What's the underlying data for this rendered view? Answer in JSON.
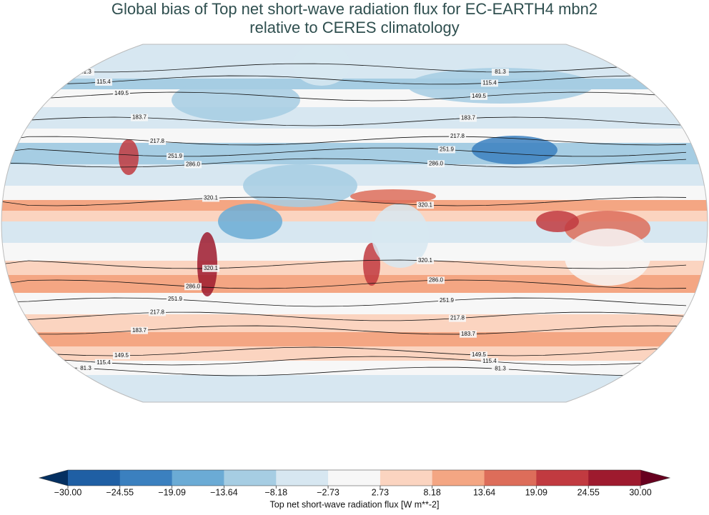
{
  "title": [
    "Global bias of Top net short-wave radiation flux for EC-EARTH4 mbn2",
    "relative to CERES climatology"
  ],
  "contour_levels": [
    81.3,
    115.4,
    149.5,
    183.7,
    217.8,
    251.9,
    {
      "value": 286,
      "label": "286.0"
    },
    320.1
  ],
  "colorbar": {
    "label": "Top net short-wave radiation flux [W m**-2]",
    "ticks": [
      {
        "value": -30,
        "label": "−30.00"
      },
      {
        "value": -24.55,
        "label": "−24.55"
      },
      {
        "value": -19.09,
        "label": "−19.09"
      },
      {
        "value": -13.64,
        "label": "−13.64"
      },
      {
        "value": -8.18,
        "label": "−8.18"
      },
      {
        "value": -2.73,
        "label": "−2.73"
      },
      2.73,
      8.18,
      13.64,
      19.09,
      24.55,
      {
        "value": 30,
        "label": "30.00"
      }
    ],
    "colors": [
      "#1f5fa4",
      "#3b80bf",
      "#6babd5",
      "#a6cde3",
      "#d7e7f1",
      "#f7f7f7",
      "#fbd4c0",
      "#f4a683",
      "#dd6d5a",
      "#c13a40",
      "#9e1a2e"
    ],
    "under": "#053061",
    "over": "#67001f"
  }
}
